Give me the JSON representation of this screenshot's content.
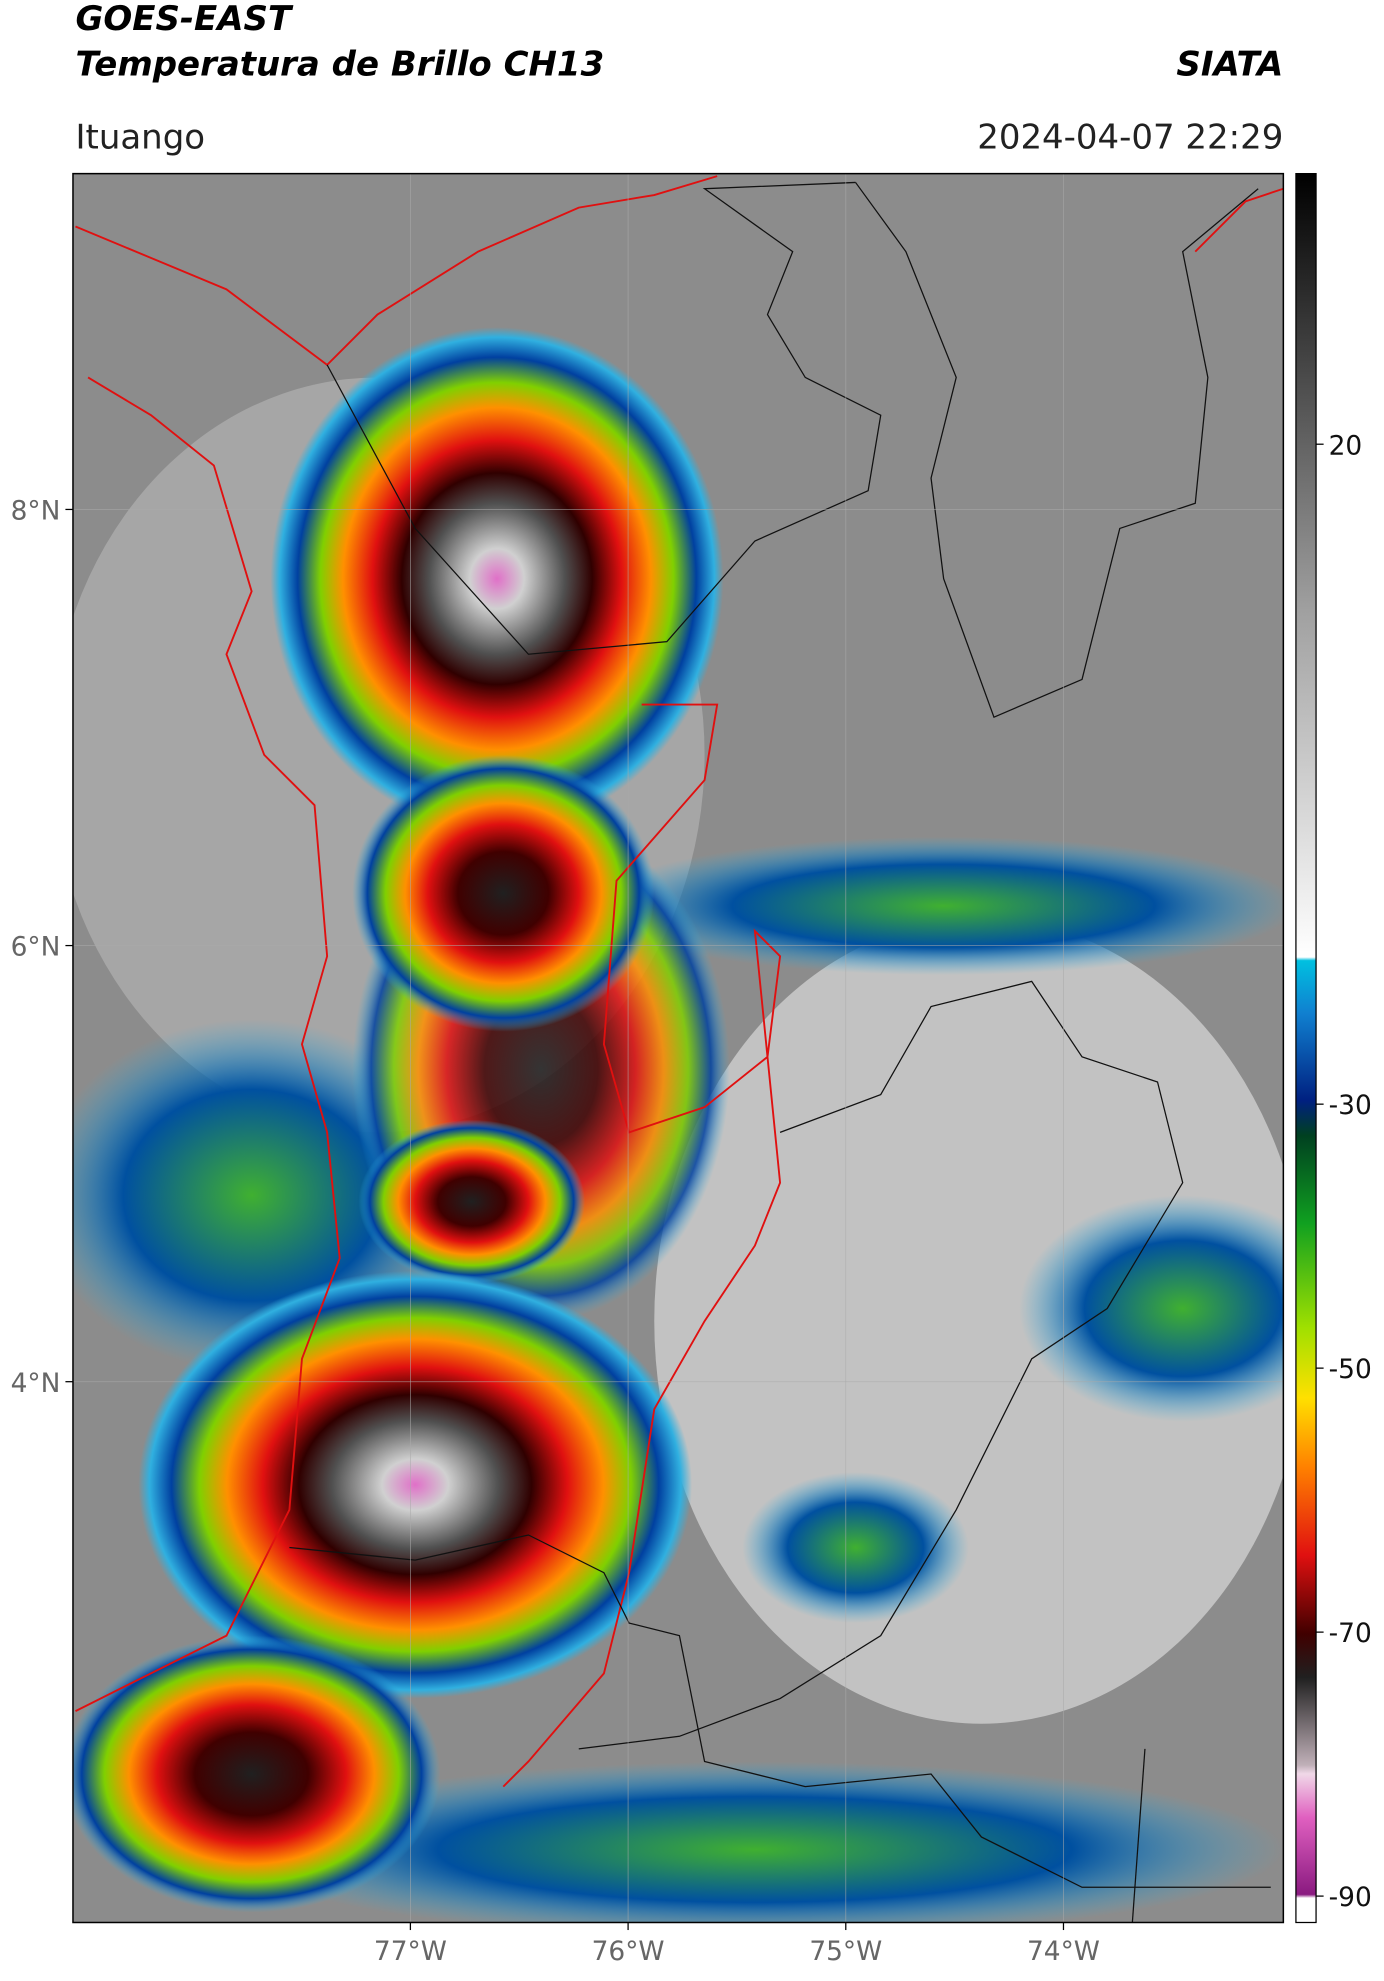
{
  "header": {
    "title": "GOES-EAST",
    "subtitle": "Temperatura de Brillo CH13",
    "source": "SIATA",
    "location": "Ituango",
    "timestamp": "2024-04-07 22:29"
  },
  "map": {
    "xlim": [
      -78.55,
      -72.99
    ],
    "ylim": [
      1.52,
      9.54
    ],
    "xticks": [
      {
        "value": -77,
        "label": "77°W"
      },
      {
        "value": -76,
        "label": "76°W"
      },
      {
        "value": -75,
        "label": "75°W"
      },
      {
        "value": -74,
        "label": "74°W"
      }
    ],
    "yticks": [
      {
        "value": 8,
        "label": "8°N"
      },
      {
        "value": 6,
        "label": "6°N"
      },
      {
        "value": 4,
        "label": "4°N"
      }
    ],
    "grid": true
  },
  "colorbar": {
    "lim": [
      -92,
      40.5
    ],
    "ticks": [
      20,
      -30,
      -50,
      -70,
      -90
    ]
  }
}
